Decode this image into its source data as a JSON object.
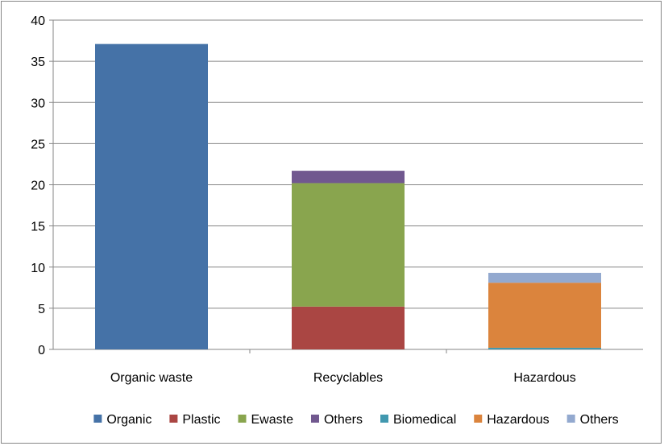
{
  "chart_data": {
    "type": "bar",
    "stacked": true,
    "categories": [
      "Organic waste",
      "Recyclables",
      "Hazardous"
    ],
    "ylim": [
      0,
      40
    ],
    "yticks": [
      0,
      5,
      10,
      15,
      20,
      25,
      30,
      35,
      40
    ],
    "grid": true,
    "legend_position": "bottom",
    "title": "",
    "xlabel": "",
    "ylabel": "",
    "series": [
      {
        "name": "Organic",
        "color": "#4572A7",
        "values": [
          37.1,
          0,
          0
        ]
      },
      {
        "name": "Plastic",
        "color": "#AA4643",
        "values": [
          0,
          5.2,
          0
        ]
      },
      {
        "name": "Ewaste",
        "color": "#89A54E",
        "values": [
          0,
          15.0,
          0
        ]
      },
      {
        "name": "Others",
        "color": "#71588F",
        "values": [
          0,
          1.5,
          0
        ]
      },
      {
        "name": "Biomedical",
        "color": "#4198AF",
        "values": [
          0,
          0,
          0.2
        ]
      },
      {
        "name": "Hazardous",
        "color": "#DB843D",
        "values": [
          0,
          0,
          7.9
        ]
      },
      {
        "name": "Others",
        "color": "#93A9CF",
        "values": [
          0,
          0,
          1.2
        ]
      }
    ]
  }
}
